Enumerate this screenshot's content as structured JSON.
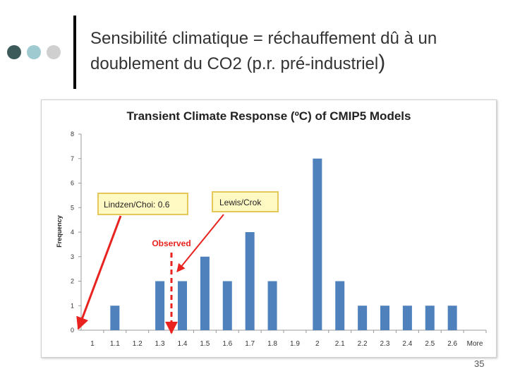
{
  "slide": {
    "title_main": "Sensibilité climatique = réchauffement dû à un doublement du CO2 (p.r. pré-industriel",
    "title_paren": ")",
    "page_number": "35",
    "dot_colors": [
      "#3d5a5a",
      "#9ecad0",
      "#cfcfcf"
    ]
  },
  "chart_data": {
    "type": "bar",
    "title": "Transient Climate Response (ºC) of CMIP5 Models",
    "ylabel": "Frequency",
    "xlabel": "",
    "ylim": [
      0,
      8
    ],
    "yticks": [
      "0",
      "1",
      "2",
      "3",
      "4",
      "5",
      "6",
      "7",
      "8"
    ],
    "categories": [
      "1",
      "1.1",
      "1.2",
      "1.3",
      "1.4",
      "1.5",
      "1.6",
      "1.7",
      "1.8",
      "1.9",
      "2",
      "2.1",
      "2.2",
      "2.3",
      "2.4",
      "2.5",
      "2.6",
      "More"
    ],
    "values": [
      0,
      1,
      0,
      2,
      2,
      3,
      2,
      4,
      2,
      0,
      7,
      2,
      1,
      1,
      1,
      1,
      1,
      0
    ],
    "bar_color": "#4f81bd",
    "annotations": [
      {
        "text": "Lindzen/Choi: 0.6",
        "points_to": 0.6
      },
      {
        "text": "Lewis/Crok",
        "points_to": 1.35
      },
      {
        "text": "Observed",
        "points_to": 1.35
      }
    ]
  }
}
